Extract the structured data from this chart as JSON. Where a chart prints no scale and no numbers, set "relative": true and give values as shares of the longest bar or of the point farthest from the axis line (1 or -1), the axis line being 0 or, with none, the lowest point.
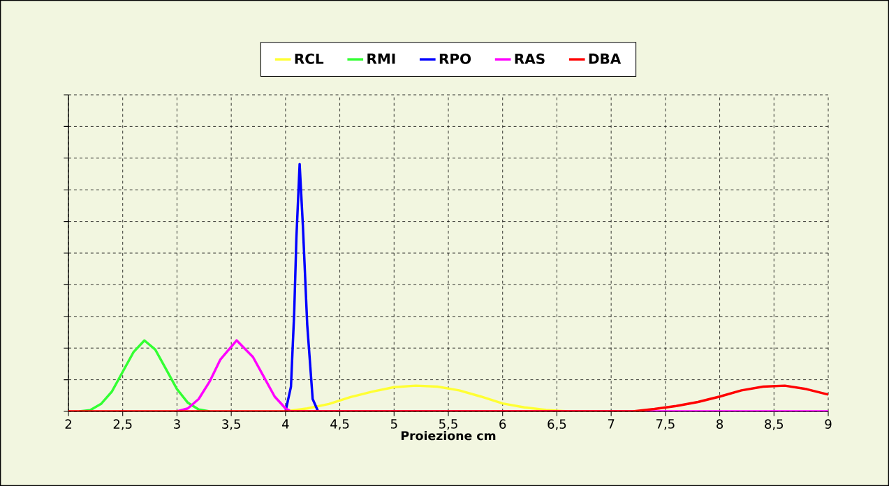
{
  "chart_data": {
    "type": "line",
    "relative": true,
    "xlabel": "Proiezione cm",
    "xlim": [
      2,
      9
    ],
    "xticks": [
      2,
      {
        "value": 2.5,
        "label": "2,5"
      },
      3,
      {
        "value": 3.5,
        "label": "3,5"
      },
      4,
      {
        "value": 4.5,
        "label": "4,5"
      },
      5,
      {
        "value": 5.5,
        "label": "5,5"
      },
      6,
      {
        "value": 6.5,
        "label": "6,5"
      },
      7,
      {
        "value": 7.5,
        "label": "7,5"
      },
      8,
      {
        "value": 8.5,
        "label": "8,5"
      },
      9
    ],
    "grid": true,
    "legend": "top",
    "series": [
      {
        "name": "RCL",
        "color": "#ffff33",
        "x": [
          4.0,
          4.2,
          4.4,
          4.6,
          4.8,
          5.0,
          5.2,
          5.4,
          5.6,
          5.8,
          6.0,
          6.2,
          6.4,
          6.6
        ],
        "values": [
          0,
          0.012,
          0.03,
          0.058,
          0.08,
          0.098,
          0.104,
          0.1,
          0.085,
          0.06,
          0.032,
          0.016,
          0.006,
          0
        ]
      },
      {
        "name": "RMI",
        "color": "#33ff33",
        "x": [
          2.1,
          2.2,
          2.3,
          2.4,
          2.5,
          2.6,
          2.7,
          2.8,
          2.9,
          3.0,
          3.1,
          3.2,
          3.3
        ],
        "values": [
          0,
          0.005,
          0.03,
          0.08,
          0.16,
          0.24,
          0.287,
          0.25,
          0.17,
          0.09,
          0.035,
          0.008,
          0
        ]
      },
      {
        "name": "RPO",
        "color": "#0000ff",
        "x": [
          4.0,
          4.05,
          4.08,
          4.1,
          4.13,
          4.16,
          4.2,
          4.25,
          4.3
        ],
        "values": [
          0,
          0.1,
          0.4,
          0.7,
          1.0,
          0.75,
          0.35,
          0.05,
          0
        ]
      },
      {
        "name": "RAS",
        "color": "#ff00ff",
        "x": [
          3.0,
          3.1,
          3.2,
          3.3,
          3.4,
          3.55,
          3.7,
          3.8,
          3.9,
          4.0,
          4.05,
          9
        ],
        "values": [
          0,
          0.012,
          0.05,
          0.12,
          0.21,
          0.287,
          0.22,
          0.14,
          0.06,
          0.012,
          0,
          0
        ]
      },
      {
        "name": "DBA",
        "color": "#ff0000",
        "x": [
          2,
          7.2,
          7.4,
          7.6,
          7.8,
          8.0,
          8.2,
          8.4,
          8.6,
          8.8,
          9
        ],
        "values": [
          0,
          0,
          0.01,
          0.022,
          0.038,
          0.06,
          0.085,
          0.1,
          0.104,
          0.09,
          0.068
        ]
      }
    ]
  }
}
